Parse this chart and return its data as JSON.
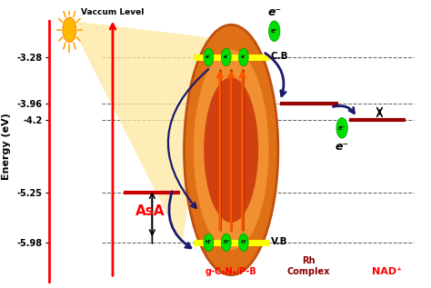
{
  "energy_levels": {
    "CB": -3.28,
    "Rh_upper": -3.96,
    "NAD_level": -4.2,
    "AsA": -5.25,
    "VB": -5.98
  },
  "y_axis_label": "Energy (eV)",
  "vaccum_label": "Vaccum Level",
  "ylim": [
    -6.55,
    -2.6
  ],
  "xlim": [
    0,
    10
  ],
  "dashed_color": "#555555",
  "CB_label": "C.B",
  "VB_label": "V.B",
  "AsA_label": "AsA",
  "gC3N4_label": "g-C₃N₄/P-B",
  "Rh_label": "Rh\nComplex",
  "NAD_label": "NAD⁺",
  "arrow_color": "#1a1a6e",
  "sun_color": "#FFB800",
  "sun_ray_color": "#FFA500",
  "beam_color": "#FFE8A0",
  "ellipse_outer_color": "#E07820",
  "ellipse_mid_color": "#F09030",
  "ellipse_inner_color": "#E05010",
  "ellipse_core_color": "#C03000",
  "CB_bar_color": "#FFFF00",
  "VB_bar_color": "#FFFF00",
  "Rh_bar_color": "#990000",
  "NAD_bar_color": "#990000",
  "AsA_bar_color": "#CC0000",
  "green_dot_color": "#00DD00",
  "vert_arrow_up_color": "#FF4400",
  "vert_arrow_down_color": "#CC0000"
}
